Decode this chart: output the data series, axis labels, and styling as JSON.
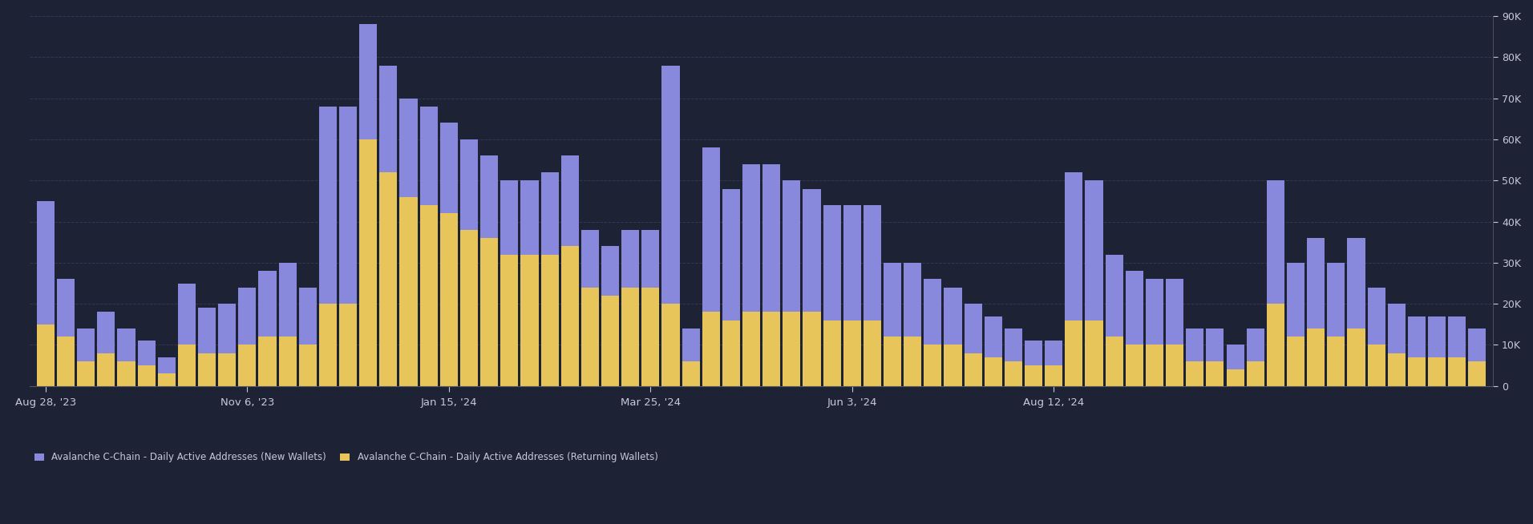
{
  "background_color": "#1e2235",
  "bar_color_new": "#8888dd",
  "bar_color_returning": "#e8c55a",
  "grid_color": "#383d58",
  "text_color": "#c8c8d8",
  "ylim": [
    0,
    90000
  ],
  "yticks": [
    0,
    10000,
    20000,
    30000,
    40000,
    50000,
    60000,
    70000,
    80000,
    90000
  ],
  "legend_new": "Avalanche C-Chain - Daily Active Addresses (New Wallets)",
  "legend_returning": "Avalanche C-Chain - Daily Active Addresses (Returning Wallets)",
  "xtick_labels": [
    "Aug 28, '23",
    "Nov 6, '23",
    "Jan 15, '24",
    "Mar 25, '24",
    "Jun 3, '24",
    "Aug 12, '24"
  ],
  "new_wallets": [
    30000,
    14000,
    8000,
    10000,
    8000,
    6000,
    4000,
    15000,
    11000,
    12000,
    14000,
    16000,
    18000,
    14000,
    48000,
    48000,
    28000,
    26000,
    24000,
    24000,
    22000,
    22000,
    20000,
    18000,
    18000,
    20000,
    22000,
    14000,
    12000,
    14000,
    14000,
    58000,
    8000,
    40000,
    32000,
    36000,
    36000,
    32000,
    30000,
    28000,
    28000,
    28000,
    18000,
    18000,
    16000,
    14000,
    12000,
    10000,
    8000,
    6000,
    6000,
    36000,
    34000,
    20000,
    18000,
    16000,
    16000,
    8000,
    8000,
    6000,
    8000,
    30000,
    18000,
    22000,
    18000,
    22000,
    14000,
    12000,
    10000,
    10000,
    10000,
    8000
  ],
  "returning_wallets": [
    15000,
    12000,
    6000,
    8000,
    6000,
    5000,
    3000,
    10000,
    8000,
    8000,
    10000,
    12000,
    12000,
    10000,
    20000,
    20000,
    60000,
    52000,
    46000,
    44000,
    42000,
    38000,
    36000,
    32000,
    32000,
    32000,
    34000,
    24000,
    22000,
    24000,
    24000,
    20000,
    6000,
    18000,
    16000,
    18000,
    18000,
    18000,
    18000,
    16000,
    16000,
    16000,
    12000,
    12000,
    10000,
    10000,
    8000,
    7000,
    6000,
    5000,
    5000,
    16000,
    16000,
    12000,
    10000,
    10000,
    10000,
    6000,
    6000,
    4000,
    6000,
    20000,
    12000,
    14000,
    12000,
    14000,
    10000,
    8000,
    7000,
    7000,
    7000,
    6000
  ]
}
